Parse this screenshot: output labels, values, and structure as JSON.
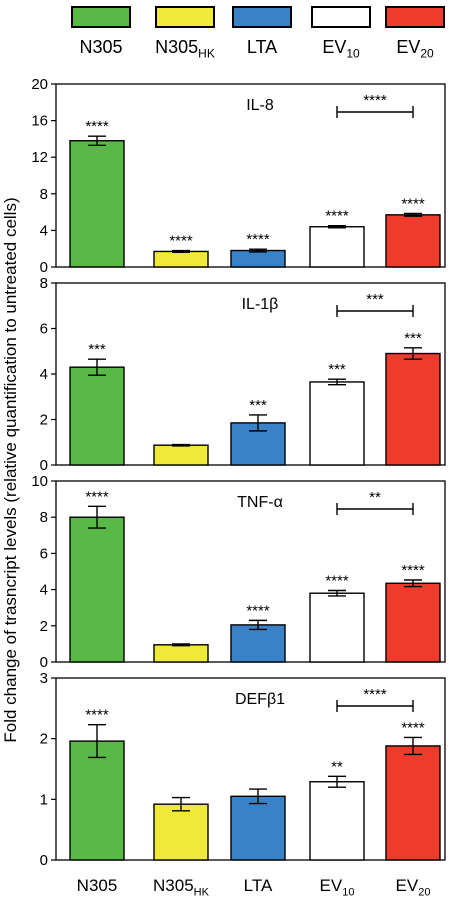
{
  "legend": [
    {
      "main": "N305",
      "sub": "",
      "color": "#59b946"
    },
    {
      "main": "N305",
      "sub": "HK",
      "color": "#f0e93a"
    },
    {
      "main": "LTA",
      "sub": "",
      "color": "#3a82c8"
    },
    {
      "main": "EV",
      "sub": "10",
      "color": "#ffffff"
    },
    {
      "main": "EV",
      "sub": "20",
      "color": "#ee3b2c"
    }
  ],
  "ylabel": "Fold change of trasncript levels (relative quantification to untreated cells)",
  "chart_data": [
    {
      "type": "bar",
      "title": "IL-8",
      "categories": [
        "N305",
        "N305HK",
        "LTA",
        "EV10",
        "EV20"
      ],
      "values": [
        13.8,
        1.7,
        1.8,
        4.4,
        5.7
      ],
      "errors": [
        0.5,
        0.1,
        0.15,
        0.12,
        0.15
      ],
      "significance": [
        "****",
        "****",
        "****",
        "****",
        "****"
      ],
      "bracket": {
        "from": "EV10",
        "to": "EV20",
        "label": "****"
      },
      "ylim": [
        0,
        20
      ],
      "yticks": [
        0,
        4,
        8,
        12,
        16,
        20
      ]
    },
    {
      "type": "bar",
      "title": "IL-1β",
      "categories": [
        "N305",
        "N305HK",
        "LTA",
        "EV10",
        "EV20"
      ],
      "values": [
        4.3,
        0.87,
        1.85,
        3.65,
        4.9
      ],
      "errors": [
        0.35,
        0.03,
        0.35,
        0.12,
        0.25
      ],
      "significance": [
        "***",
        "",
        "***",
        "***",
        "***"
      ],
      "bracket": {
        "from": "EV10",
        "to": "EV20",
        "label": "***"
      },
      "ylim": [
        0,
        8
      ],
      "yticks": [
        0,
        2,
        4,
        6,
        8
      ]
    },
    {
      "type": "bar",
      "title": "TNF-α",
      "categories": [
        "N305",
        "N305HK",
        "LTA",
        "EV10",
        "EV20"
      ],
      "values": [
        8.0,
        0.95,
        2.05,
        3.8,
        4.35
      ],
      "errors": [
        0.6,
        0.05,
        0.25,
        0.15,
        0.18
      ],
      "significance": [
        "****",
        "",
        "****",
        "****",
        "****"
      ],
      "bracket": {
        "from": "EV10",
        "to": "EV20",
        "label": "**"
      },
      "ylim": [
        0,
        10
      ],
      "yticks": [
        0,
        2,
        4,
        6,
        8,
        10
      ]
    },
    {
      "type": "bar",
      "title": "DEFβ1",
      "categories": [
        "N305",
        "N305HK",
        "LTA",
        "EV10",
        "EV20"
      ],
      "values": [
        1.96,
        0.92,
        1.05,
        1.29,
        1.88
      ],
      "errors": [
        0.27,
        0.11,
        0.12,
        0.09,
        0.14
      ],
      "significance": [
        "****",
        "",
        "",
        "**",
        "****"
      ],
      "bracket": {
        "from": "EV10",
        "to": "EV20",
        "label": "****"
      },
      "ylim": [
        0,
        3
      ],
      "yticks": [
        0,
        1,
        2,
        3
      ]
    }
  ],
  "xlabels": [
    {
      "main": "N305",
      "sub": ""
    },
    {
      "main": "N305",
      "sub": "HK"
    },
    {
      "main": "LTA",
      "sub": ""
    },
    {
      "main": "EV",
      "sub": "10"
    },
    {
      "main": "EV",
      "sub": "20"
    }
  ]
}
